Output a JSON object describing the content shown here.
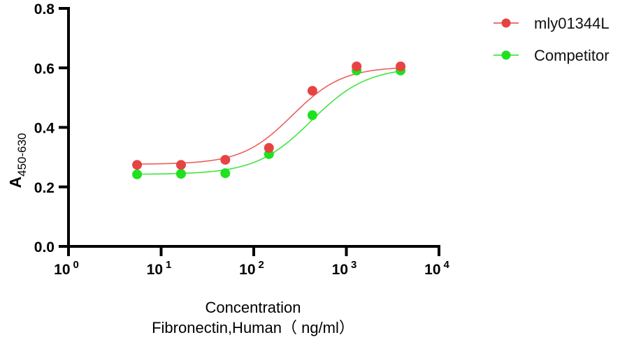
{
  "chart_data": {
    "type": "line",
    "title": "",
    "xlabel": [
      "Concentration",
      "Fibronectin,Human（ ng/ml）"
    ],
    "ylabel": {
      "main": "A",
      "subscript": "450-630"
    },
    "xscale": "log",
    "xlim": [
      1,
      10000
    ],
    "ylim": [
      0,
      0.8
    ],
    "x_ticks": [
      {
        "value": 1,
        "base": "10",
        "exp": "0"
      },
      {
        "value": 10,
        "base": "10",
        "exp": "1"
      },
      {
        "value": 100,
        "base": "10",
        "exp": "2"
      },
      {
        "value": 1000,
        "base": "10",
        "exp": "3"
      },
      {
        "value": 10000,
        "base": "10",
        "exp": "4"
      }
    ],
    "y_ticks": [
      "0.0",
      "0.2",
      "0.4",
      "0.6",
      "0.8"
    ],
    "grid": false,
    "legend_position": "top-right",
    "x": [
      5.5,
      16.4,
      49.3,
      146,
      430,
      1290,
      3850
    ],
    "series": [
      {
        "name": "mly01344L",
        "color": "#e84343",
        "values": [
          0.274,
          0.274,
          0.291,
          0.331,
          0.523,
          0.605,
          0.605
        ],
        "fit": {
          "bottom": 0.276,
          "top": 0.604,
          "ec50": 260,
          "hill": 1.6
        }
      },
      {
        "name": "Competitor",
        "color": "#1ee21e",
        "values": [
          0.242,
          0.244,
          0.246,
          0.31,
          0.441,
          0.591,
          0.591
        ],
        "fit": {
          "bottom": 0.242,
          "top": 0.603,
          "ec50": 420,
          "hill": 1.45
        }
      }
    ]
  }
}
